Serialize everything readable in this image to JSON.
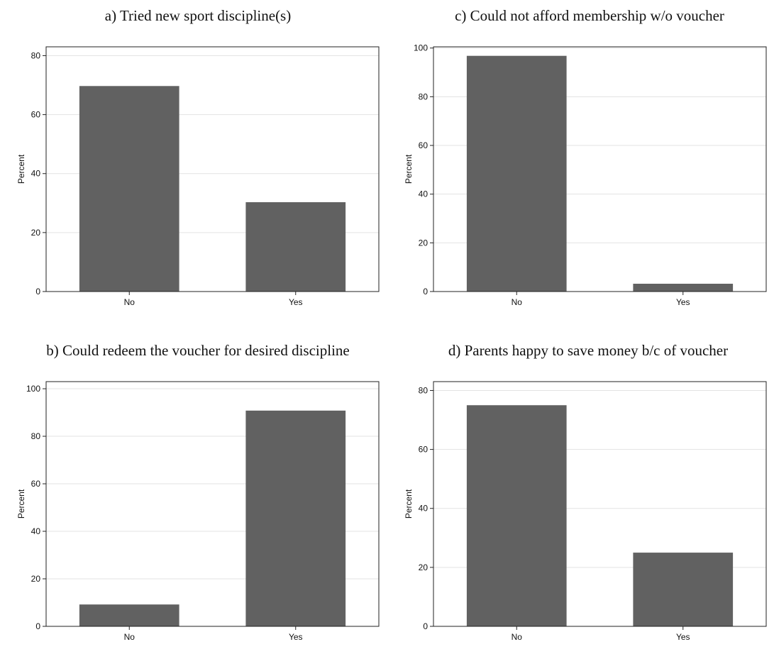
{
  "chart_data": [
    {
      "type": "bar",
      "title": "a) Tried new sport discipline(s)",
      "categories": [
        "No",
        "Yes"
      ],
      "values": [
        69.7,
        30.3
      ],
      "ylabel": "Percent",
      "xlabel": "",
      "ylim": [
        0,
        83
      ],
      "yticks": [
        0,
        20,
        40,
        60,
        80
      ],
      "grid": true,
      "bar_color": "#616161"
    },
    {
      "type": "bar",
      "title": "c) Could not afford membership w/o voucher",
      "categories": [
        "No",
        "Yes"
      ],
      "values": [
        96.8,
        3.2
      ],
      "ylabel": "Percent",
      "xlabel": "",
      "ylim": [
        0,
        100.5
      ],
      "yticks": [
        0,
        20,
        40,
        60,
        80,
        100
      ],
      "grid": true,
      "bar_color": "#616161"
    },
    {
      "type": "bar",
      "title": "b) Could redeem the voucher for desired discipline",
      "categories": [
        "No",
        "Yes"
      ],
      "values": [
        9.2,
        90.8
      ],
      "ylabel": "Percent",
      "xlabel": "",
      "ylim": [
        0,
        103
      ],
      "yticks": [
        0,
        20,
        40,
        60,
        80,
        100
      ],
      "grid": true,
      "bar_color": "#616161"
    },
    {
      "type": "bar",
      "title": "d) Parents happy to save money b/c of voucher",
      "categories": [
        "No",
        "Yes"
      ],
      "values": [
        75.0,
        25.0
      ],
      "ylabel": "Percent",
      "xlabel": "",
      "ylim": [
        0,
        83
      ],
      "yticks": [
        0,
        20,
        40,
        60,
        80
      ],
      "grid": true,
      "bar_color": "#616161"
    }
  ]
}
